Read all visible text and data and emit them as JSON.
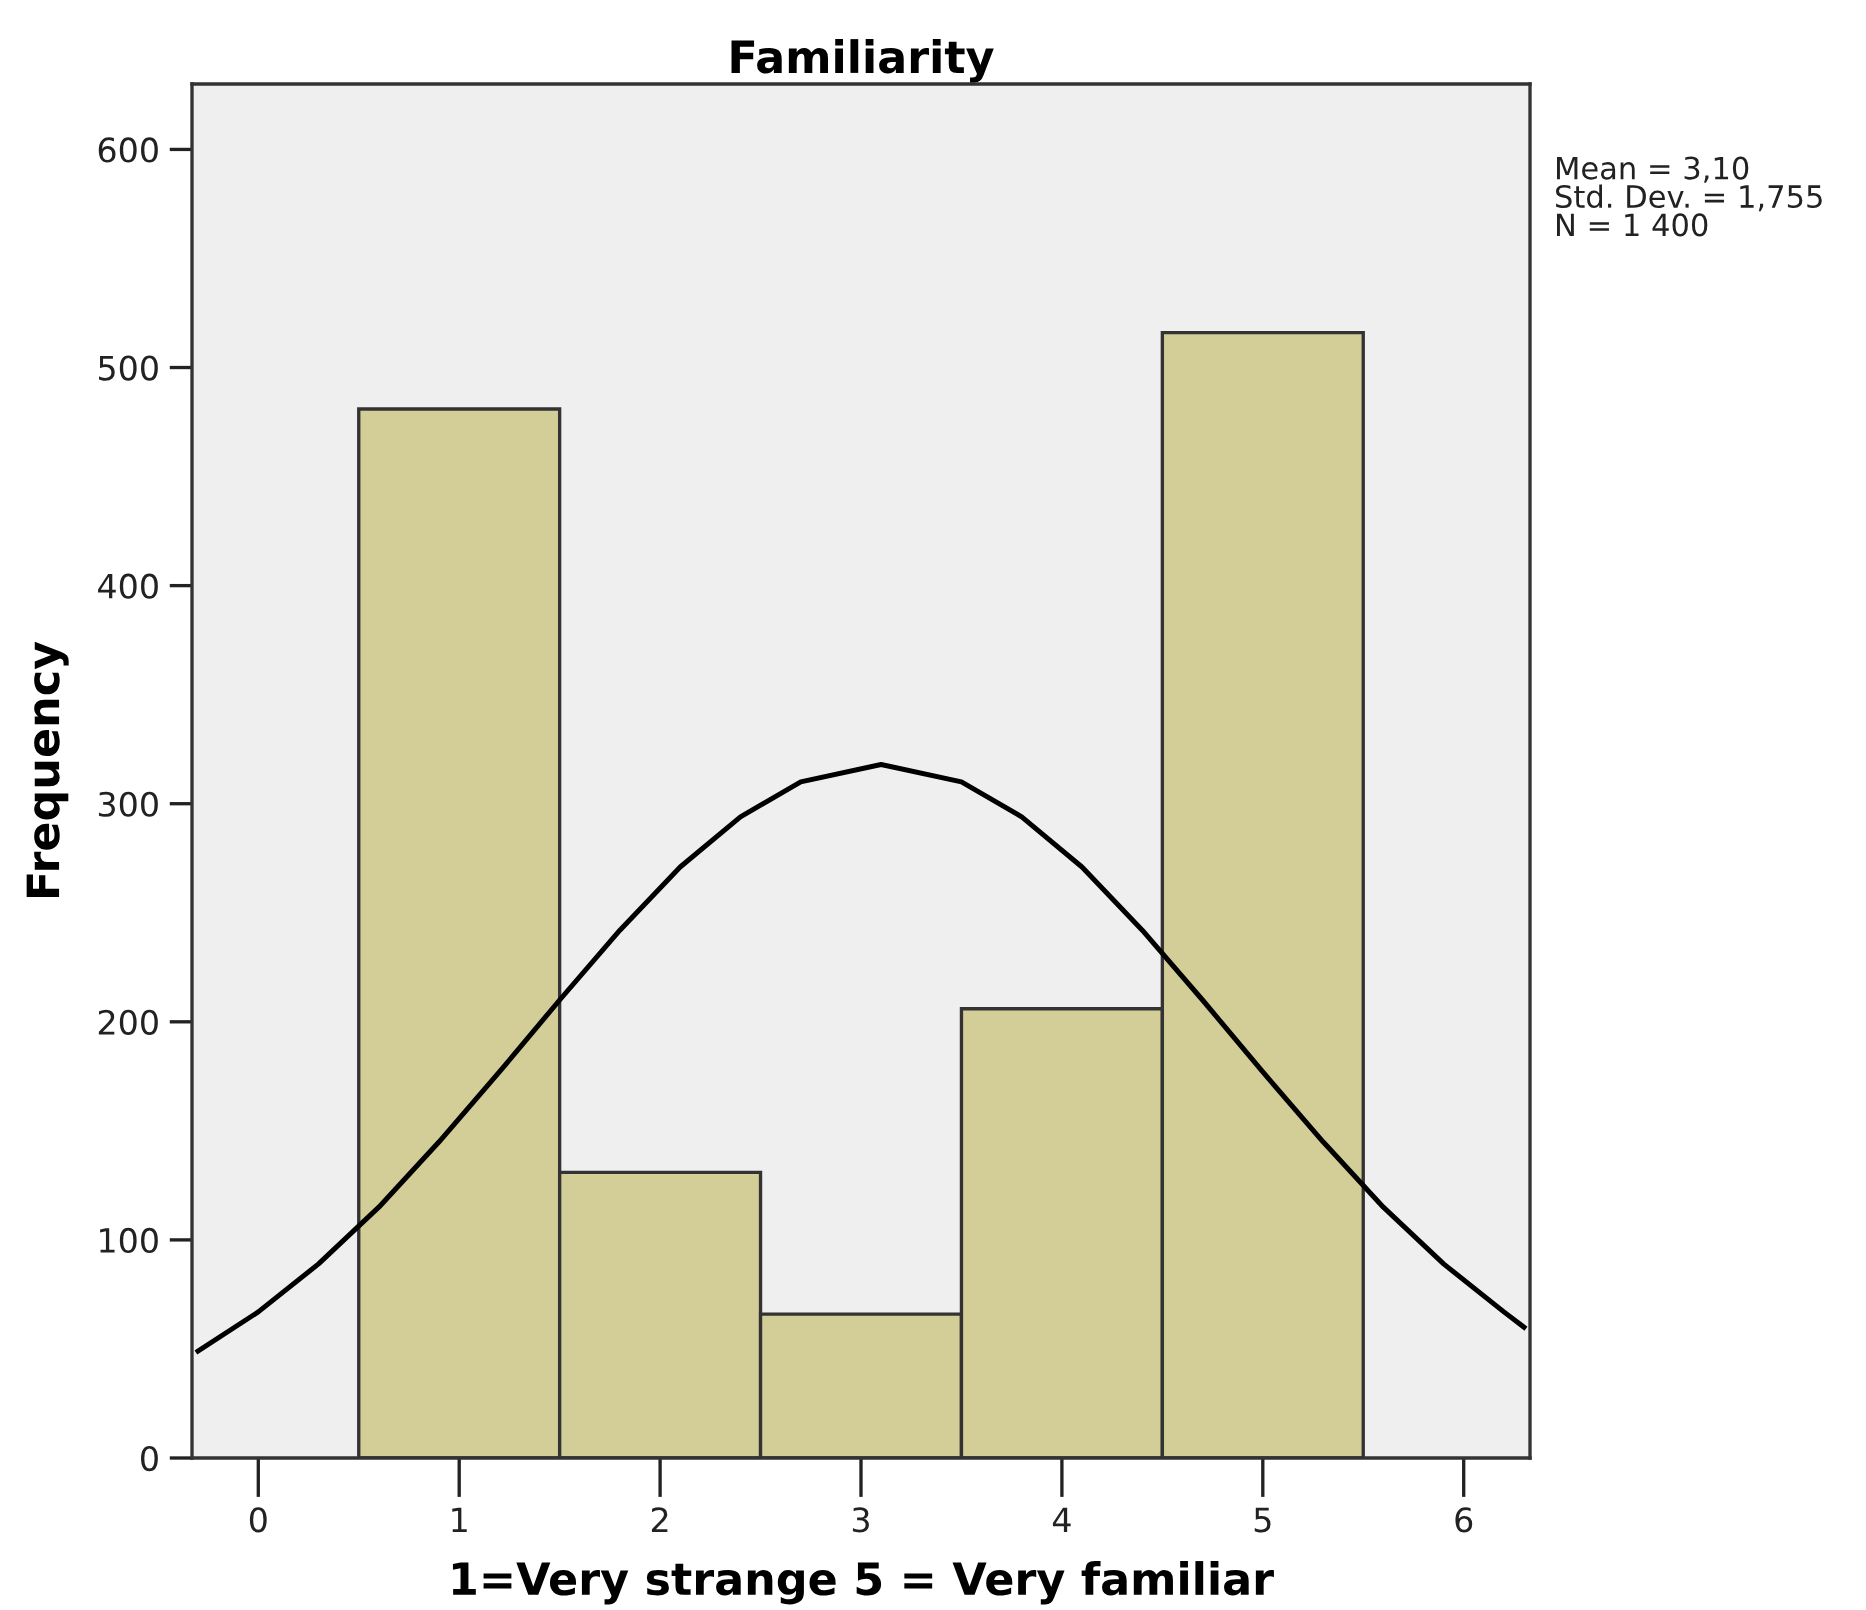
{
  "chart_data": {
    "type": "histogram",
    "title": "Familiarity",
    "xlabel": "1=Very strange 5 = Very familiar",
    "ylabel": "Frequency",
    "bins": [
      0.5,
      1.5,
      2.5,
      3.5,
      4.5,
      5.5
    ],
    "values": [
      481,
      131,
      66,
      206,
      516
    ],
    "color": "#d3cd97",
    "series": [
      {
        "type": "line",
        "color": "#000000",
        "x": [
          -0.3,
          0,
          0.3,
          0.6,
          0.9,
          1.2,
          1.5,
          1.8,
          2.1,
          2.4,
          2.7,
          3.1,
          3.5,
          3.8,
          4.1,
          4.4,
          4.7,
          5.0,
          5.3,
          5.6,
          5.9,
          6.2,
          6.3
        ],
        "values": [
          49,
          67,
          89,
          115,
          145,
          177,
          210,
          242,
          271,
          294,
          310,
          318,
          310,
          294,
          271,
          242,
          210,
          177,
          145,
          115,
          89,
          67,
          60
        ]
      }
    ],
    "xlim": [
      -0.33,
      6.33
    ],
    "xticks": [
      0,
      1,
      2,
      3,
      4,
      5,
      6
    ],
    "ylim": [
      0,
      630
    ],
    "yticks": [
      0,
      100,
      200,
      300,
      400,
      500,
      600
    ],
    "grid": false,
    "legend": false,
    "annotations": [
      "Mean = 3,10",
      "Std. Dev. = 1,755",
      "N = 1 400"
    ]
  }
}
